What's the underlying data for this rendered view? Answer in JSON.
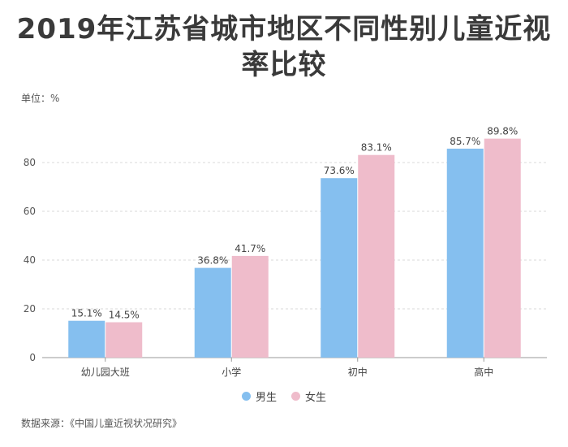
{
  "title_line1": "2019年江苏省城市地区不同性别儿童近视",
  "title_line2": "率比较",
  "unit_label": "单位：%",
  "source_label": "数据来源：《中国儿童近视状况研究》",
  "colors": {
    "male": "#85bfef",
    "female": "#efbccb"
  },
  "chart_data": {
    "type": "bar",
    "title": "2019年江苏省城市地区不同性别儿童近视率比较",
    "categories": [
      "幼儿园大班",
      "小学",
      "初中",
      "高中"
    ],
    "series": [
      {
        "name": "男生",
        "values": [
          15.1,
          36.8,
          73.6,
          85.7
        ]
      },
      {
        "name": "女生",
        "values": [
          14.5,
          41.7,
          83.1,
          89.8
        ]
      }
    ],
    "data_labels": [
      [
        "15.1%",
        "36.8%",
        "73.6%",
        "85.7%"
      ],
      [
        "14.5%",
        "41.7%",
        "83.1%",
        "89.8%"
      ]
    ],
    "yticks": [
      0,
      20,
      40,
      60,
      80
    ],
    "ylim": [
      0,
      100
    ],
    "grid": true,
    "legend_position": "bottom-center"
  }
}
